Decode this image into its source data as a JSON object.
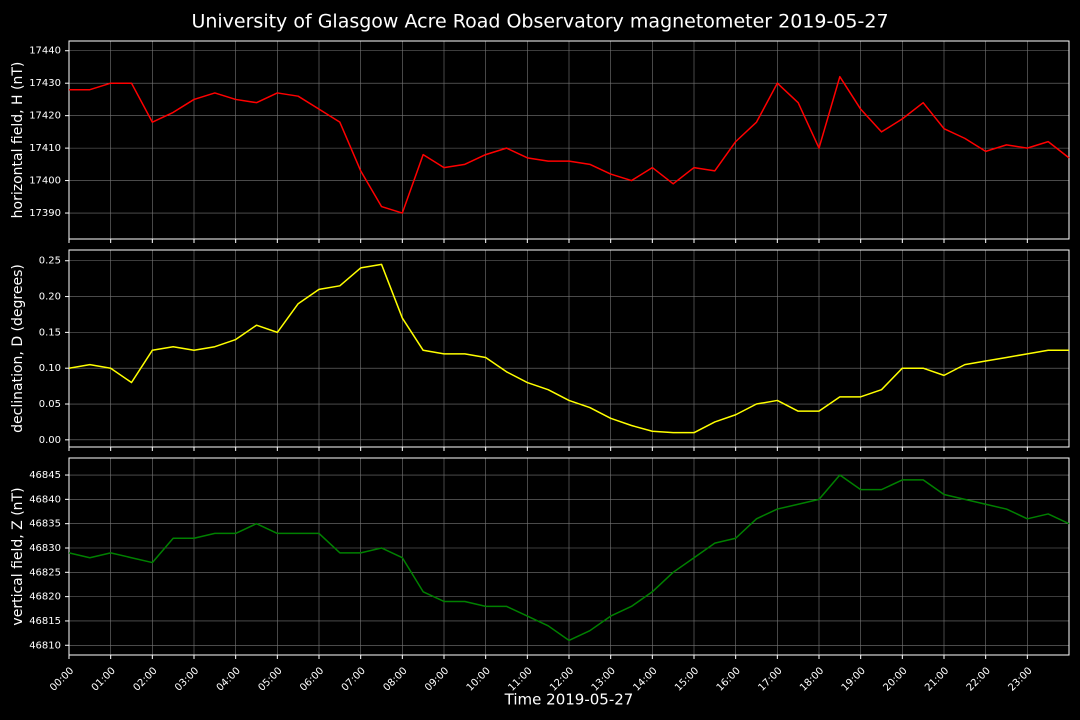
{
  "title": "University of Glasgow Acre Road Observatory magnetometer 2019-05-27",
  "chart_data": [
    {
      "type": "line",
      "ylabel": "horizontal field, H (nT)",
      "x": [
        0,
        0.5,
        1,
        1.5,
        2,
        2.5,
        3,
        3.5,
        4,
        4.5,
        5,
        5.5,
        6,
        6.5,
        7,
        7.5,
        8,
        8.5,
        9,
        9.5,
        10,
        10.5,
        11,
        11.5,
        12,
        12.5,
        13,
        13.5,
        14,
        14.5,
        15,
        15.5,
        16,
        16.5,
        17,
        17.5,
        18,
        18.5,
        19,
        19.5,
        20,
        20.5,
        21,
        21.5,
        22,
        22.5,
        23,
        23.5,
        24
      ],
      "series": [
        {
          "color": "#ff0000",
          "values": [
            17428,
            17428,
            17430,
            17430,
            17418,
            17421,
            17425,
            17427,
            17425,
            17424,
            17427,
            17426,
            17422,
            17418,
            17403,
            17392,
            17390,
            17408,
            17404,
            17405,
            17408,
            17410,
            17407,
            17406,
            17406,
            17405,
            17402,
            17400,
            17404,
            17399,
            17404,
            17403,
            17412,
            17418,
            17430,
            17424,
            17410,
            17432,
            17422,
            17415,
            17419,
            17424,
            17416,
            17413,
            17409,
            17411,
            17410,
            17412,
            17407
          ]
        }
      ],
      "xlim": [
        0,
        24
      ],
      "ylim": [
        17382,
        17443
      ],
      "yticks": [
        17390,
        17400,
        17410,
        17420,
        17430,
        17440
      ],
      "grid": true
    },
    {
      "type": "line",
      "ylabel": "declination, D (degrees)",
      "x": [
        0,
        0.5,
        1,
        1.5,
        2,
        2.5,
        3,
        3.5,
        4,
        4.5,
        5,
        5.5,
        6,
        6.5,
        7,
        7.5,
        8,
        8.5,
        9,
        9.5,
        10,
        10.5,
        11,
        11.5,
        12,
        12.5,
        13,
        13.5,
        14,
        14.5,
        15,
        15.5,
        16,
        16.5,
        17,
        17.5,
        18,
        18.5,
        19,
        19.5,
        20,
        20.5,
        21,
        21.5,
        22,
        22.5,
        23,
        23.5,
        24
      ],
      "series": [
        {
          "color": "#ffff00",
          "values": [
            0.1,
            0.105,
            0.1,
            0.08,
            0.125,
            0.13,
            0.125,
            0.13,
            0.14,
            0.16,
            0.15,
            0.19,
            0.21,
            0.215,
            0.24,
            0.245,
            0.17,
            0.125,
            0.12,
            0.12,
            0.115,
            0.095,
            0.08,
            0.07,
            0.055,
            0.045,
            0.03,
            0.02,
            0.012,
            0.01,
            0.01,
            0.025,
            0.035,
            0.05,
            0.055,
            0.04,
            0.04,
            0.06,
            0.06,
            0.07,
            0.1,
            0.1,
            0.09,
            0.105,
            0.11,
            0.115,
            0.12,
            0.125,
            0.125
          ]
        }
      ],
      "xlim": [
        0,
        24
      ],
      "ylim": [
        -0.01,
        0.265
      ],
      "yticks": [
        {
          "value": 0,
          "label": "0.00"
        },
        0.05,
        {
          "value": 0.1,
          "label": "0.10"
        },
        0.15,
        {
          "value": 0.2,
          "label": "0.20"
        },
        0.25
      ],
      "grid": true
    },
    {
      "type": "line",
      "ylabel": "vertical field, Z (nT)",
      "xlabel": "Time 2019-05-27",
      "x": [
        0,
        0.5,
        1,
        1.5,
        2,
        2.5,
        3,
        3.5,
        4,
        4.5,
        5,
        5.5,
        6,
        6.5,
        7,
        7.5,
        8,
        8.5,
        9,
        9.5,
        10,
        10.5,
        11,
        11.5,
        12,
        12.5,
        13,
        13.5,
        14,
        14.5,
        15,
        15.5,
        16,
        16.5,
        17,
        17.5,
        18,
        18.5,
        19,
        19.5,
        20,
        20.5,
        21,
        21.5,
        22,
        22.5,
        23,
        23.5,
        24
      ],
      "series": [
        {
          "color": "#008000",
          "values": [
            46829,
            46828,
            46829,
            46828,
            46827,
            46832,
            46832,
            46833,
            46833,
            46835,
            46833,
            46833,
            46833,
            46829,
            46829,
            46830,
            46828,
            46821,
            46819,
            46819,
            46818,
            46818,
            46816,
            46814,
            46811,
            46813,
            46816,
            46818,
            46821,
            46825,
            46828,
            46831,
            46832,
            46836,
            46838,
            46839,
            46840,
            46845,
            46842,
            46842,
            46844,
            46844,
            46841,
            46840,
            46839,
            46838,
            46836,
            46837,
            46835
          ]
        }
      ],
      "xlim": [
        0,
        24
      ],
      "ylim": [
        46808,
        46848.5
      ],
      "yticks": [
        46810,
        46815,
        46820,
        46825,
        46830,
        46835,
        46840,
        46845
      ],
      "xticks": [
        {
          "value": 0,
          "label": "00:00"
        },
        {
          "value": 1,
          "label": "01:00"
        },
        {
          "value": 2,
          "label": "02:00"
        },
        {
          "value": 3,
          "label": "03:00"
        },
        {
          "value": 4,
          "label": "04:00"
        },
        {
          "value": 5,
          "label": "05:00"
        },
        {
          "value": 6,
          "label": "06:00"
        },
        {
          "value": 7,
          "label": "07:00"
        },
        {
          "value": 8,
          "label": "08:00"
        },
        {
          "value": 9,
          "label": "09:00"
        },
        {
          "value": 10,
          "label": "10:00"
        },
        {
          "value": 11,
          "label": "11:00"
        },
        {
          "value": 12,
          "label": "12:00"
        },
        {
          "value": 13,
          "label": "13:00"
        },
        {
          "value": 14,
          "label": "14:00"
        },
        {
          "value": 15,
          "label": "15:00"
        },
        {
          "value": 16,
          "label": "16:00"
        },
        {
          "value": 17,
          "label": "17:00"
        },
        {
          "value": 18,
          "label": "18:00"
        },
        {
          "value": 19,
          "label": "19:00"
        },
        {
          "value": 20,
          "label": "20:00"
        },
        {
          "value": 21,
          "label": "21:00"
        },
        {
          "value": 22,
          "label": "22:00"
        },
        {
          "value": 23,
          "label": "23:00"
        }
      ],
      "grid": true
    }
  ]
}
